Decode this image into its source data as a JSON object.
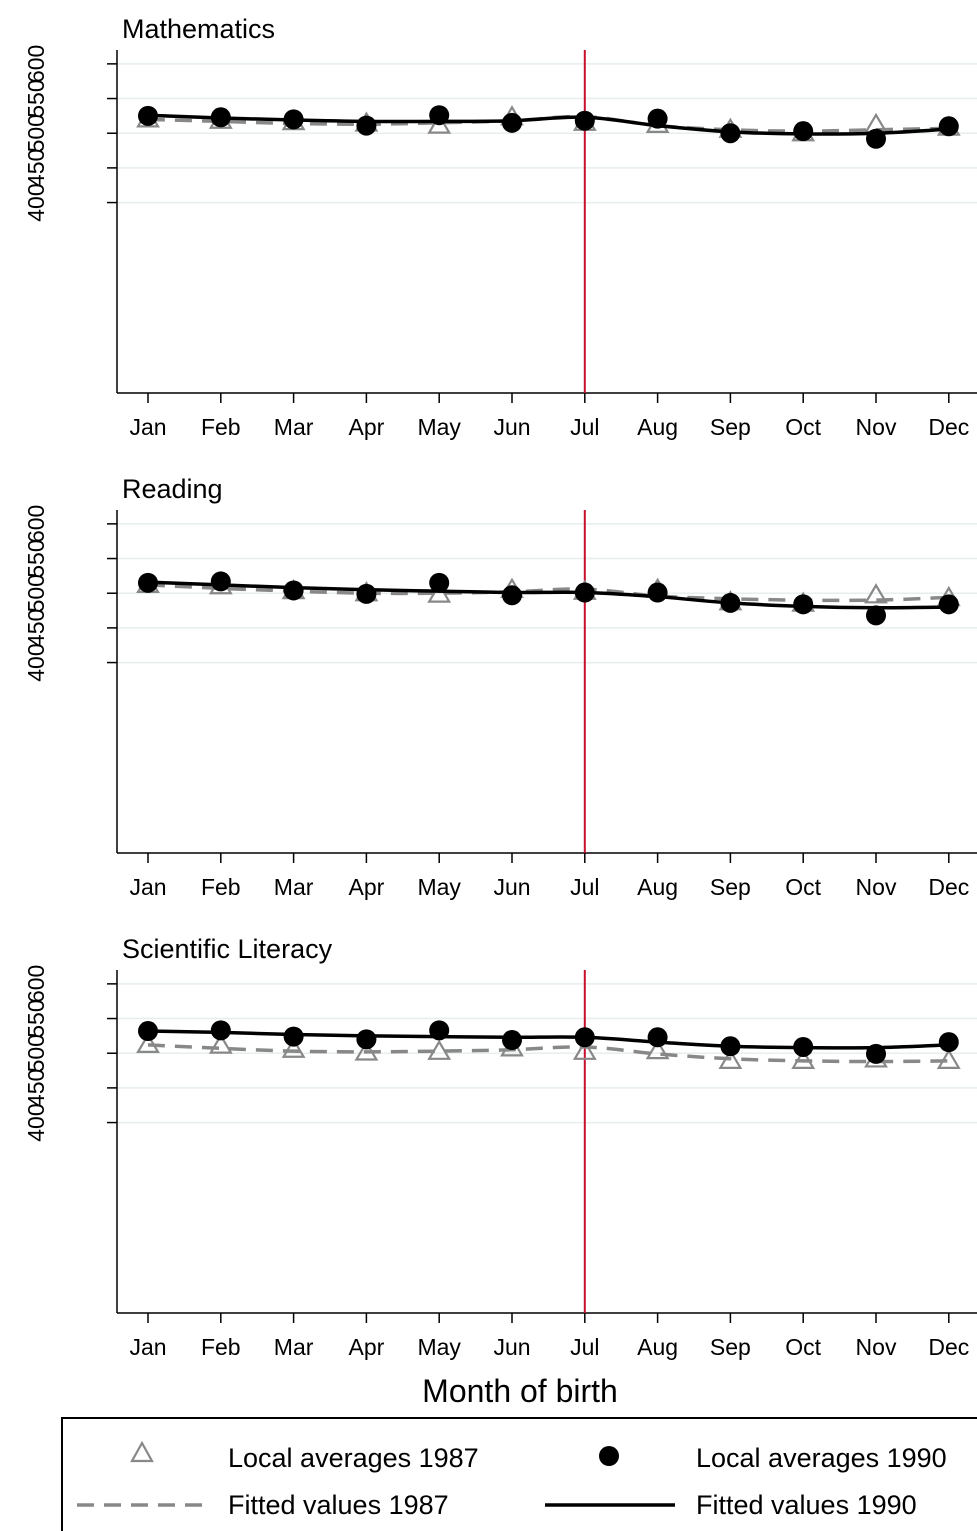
{
  "chart_data": [
    {
      "type": "scatter",
      "title": "Mathematics",
      "categories": [
        "Jan",
        "Feb",
        "Mar",
        "Apr",
        "May",
        "Jun",
        "Jul",
        "Aug",
        "Sep",
        "Oct",
        "Nov",
        "Dec"
      ],
      "cutoff": "Jul",
      "ylim": [
        378,
        620
      ],
      "yticks": [
        400,
        450,
        500,
        550,
        600
      ],
      "grid": true,
      "series": [
        {
          "name": "Local averages 1987",
          "marker": "triangle",
          "values": [
            520,
            518,
            516,
            514,
            511,
            523,
            515,
            512,
            505,
            500,
            512,
            508
          ]
        },
        {
          "name": "Local averages 1990",
          "marker": "dot",
          "values": [
            525,
            523,
            520,
            511,
            526,
            515,
            518,
            521,
            500,
            503,
            492,
            510
          ]
        },
        {
          "name": "Fitted values 1987",
          "line": "dashed",
          "values": [
            520,
            517,
            514,
            513,
            515,
            518,
            524,
            511,
            505,
            503,
            505,
            507
          ]
        },
        {
          "name": "Fitted values 1990",
          "line": "solid",
          "values": [
            526,
            522,
            519,
            517,
            517,
            518,
            523,
            511,
            502,
            499,
            500,
            506
          ]
        }
      ]
    },
    {
      "type": "scatter",
      "title": "Reading",
      "categories": [
        "Jan",
        "Feb",
        "Mar",
        "Apr",
        "May",
        "Jun",
        "Jul",
        "Aug",
        "Sep",
        "Oct",
        "Nov",
        "Dec"
      ],
      "cutoff": "Jul",
      "ylim": [
        378,
        620
      ],
      "yticks": [
        400,
        450,
        500,
        550,
        600
      ],
      "grid": true,
      "series": [
        {
          "name": "Local averages 1987",
          "marker": "triangle",
          "values": [
            512,
            510,
            503,
            500,
            498,
            505,
            502,
            505,
            487,
            485,
            497,
            493
          ]
        },
        {
          "name": "Local averages 1990",
          "marker": "dot",
          "values": [
            515,
            517,
            504,
            499,
            515,
            497,
            501,
            501,
            486,
            484,
            468,
            484
          ]
        },
        {
          "name": "Fitted values 1987",
          "line": "dashed",
          "values": [
            512,
            507,
            503,
            500,
            500,
            502,
            506,
            496,
            492,
            490,
            490,
            494
          ]
        },
        {
          "name": "Fitted values 1990",
          "line": "solid",
          "values": [
            516,
            512,
            508,
            505,
            503,
            501,
            501,
            495,
            486,
            481,
            479,
            480
          ]
        }
      ]
    },
    {
      "type": "scatter",
      "title": "Scientific Literacy",
      "categories": [
        "Jan",
        "Feb",
        "Mar",
        "Apr",
        "May",
        "Jun",
        "Jul",
        "Aug",
        "Sep",
        "Oct",
        "Nov",
        "Dec"
      ],
      "cutoff": "Jul",
      "ylim": [
        378,
        620
      ],
      "yticks": [
        400,
        450,
        500,
        550,
        600
      ],
      "grid": true,
      "series": [
        {
          "name": "Local averages 1987",
          "marker": "triangle",
          "values": [
            512,
            511,
            505,
            501,
            502,
            507,
            502,
            503,
            489,
            489,
            491,
            489
          ]
        },
        {
          "name": "Local averages 1990",
          "marker": "dot",
          "values": [
            532,
            533,
            524,
            520,
            533,
            519,
            523,
            523,
            510,
            509,
            499,
            516
          ]
        },
        {
          "name": "Fitted values 1987",
          "line": "dashed",
          "values": [
            512,
            507,
            503,
            502,
            503,
            505,
            509,
            499,
            492,
            489,
            488,
            489
          ]
        },
        {
          "name": "Fitted values 1990",
          "line": "solid",
          "values": [
            532,
            530,
            527,
            525,
            524,
            523,
            523,
            516,
            510,
            508,
            508,
            512
          ]
        }
      ]
    }
  ],
  "xlabel": "Month of birth",
  "legend": {
    "placement": "bottom",
    "items": [
      {
        "label": "Local averages 1987",
        "symbol": "triangle"
      },
      {
        "label": "Local averages 1990",
        "symbol": "dot"
      },
      {
        "label": "Fitted values 1987",
        "symbol": "dashed-line"
      },
      {
        "label": "Fitted values 1990",
        "symbol": "solid-line"
      }
    ]
  },
  "colors": {
    "series_1987": "#888888",
    "series_1990": "#000000",
    "cutoff_line": "#c8102e",
    "grid": "#e6eeee"
  }
}
